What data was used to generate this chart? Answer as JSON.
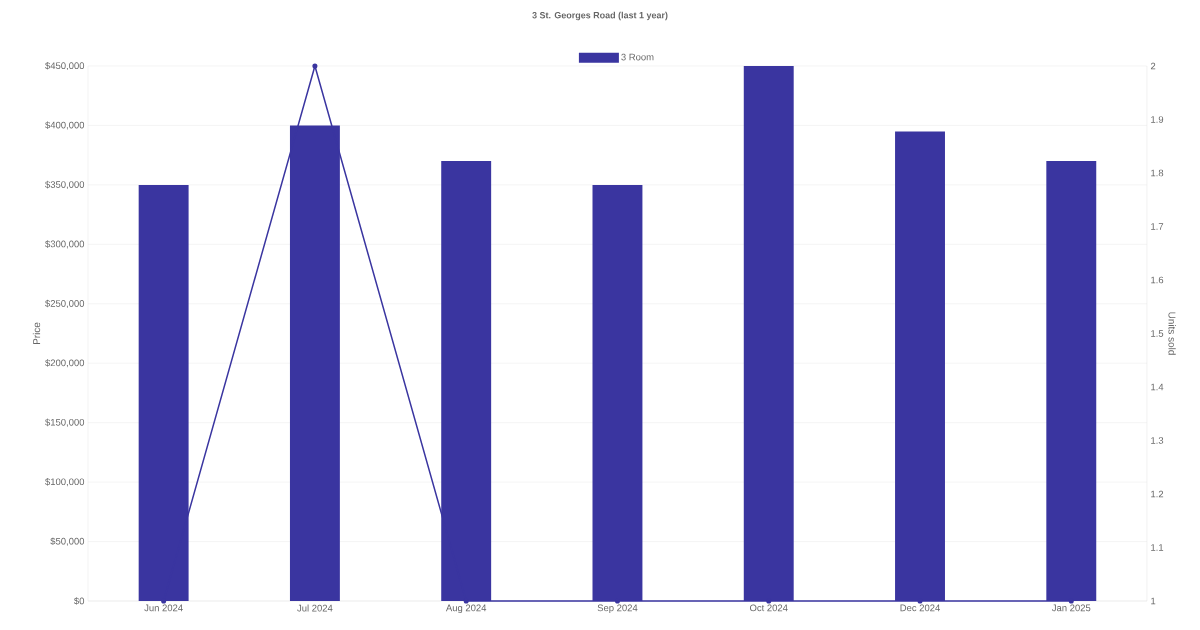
{
  "chart_data": {
    "type": "bar",
    "title": "3 St. Georges Road (last 1 year)",
    "ylabel": "Price",
    "y2label": "Units sold",
    "categories": [
      "Jun 2024",
      "Jul 2024",
      "Aug 2024",
      "Sep 2024",
      "Oct 2024",
      "Dec 2024",
      "Jan 2025"
    ],
    "series": [
      {
        "name": "3 Room",
        "color": "#3a35a0",
        "values": [
          350000,
          400000,
          370000,
          350000,
          450000,
          395000,
          370000
        ]
      },
      {
        "type": "line",
        "axis": "y2",
        "color": "#3a35a0",
        "values": [
          1,
          2,
          1,
          1,
          1,
          1,
          1
        ]
      }
    ],
    "ylim": [
      0,
      450000
    ],
    "yticks": [
      {
        "value": 0,
        "label": "$0"
      },
      {
        "value": 50000,
        "label": "$50,000"
      },
      {
        "value": 100000,
        "label": "$100,000"
      },
      {
        "value": 150000,
        "label": "$150,000"
      },
      {
        "value": 200000,
        "label": "$200,000"
      },
      {
        "value": 250000,
        "label": "$250,000"
      },
      {
        "value": 300000,
        "label": "$300,000"
      },
      {
        "value": 350000,
        "label": "$350,000"
      },
      {
        "value": 400000,
        "label": "$400,000"
      },
      {
        "value": 450000,
        "label": "$450,000"
      }
    ],
    "y2lim": [
      1,
      2
    ],
    "y2ticks": [
      1,
      1.1,
      1.2,
      1.3,
      1.4,
      1.5,
      1.6,
      1.7,
      1.8,
      1.9,
      2
    ],
    "grid": "y",
    "legend": "top",
    "marker": "circle"
  }
}
